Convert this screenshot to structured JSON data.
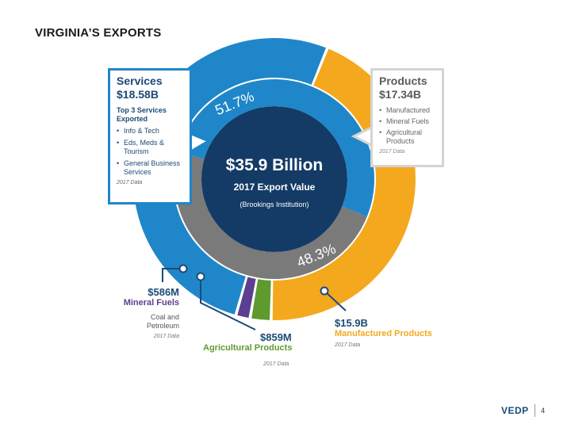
{
  "slide": {
    "title": "VIRGINIA’S EXPORTS",
    "page_number": "4",
    "logo": "VEDP"
  },
  "colors": {
    "services": "#1f87c9",
    "products": "#7a7a7a",
    "manufactured": "#f4a81d",
    "agricultural": "#5f9a2e",
    "mineral": "#5c3f8f",
    "center": "#133b66",
    "white": "#ffffff"
  },
  "center": {
    "value": "$35.9 Billion",
    "label": "2017 Export Value",
    "source": "(Brookings Institution)"
  },
  "services_box": {
    "title": "Services",
    "value": "$18.58B",
    "subtitle": "Top 3 Services Exported",
    "items": [
      "Info & Tech",
      "Eds, Meds & Tourism",
      "General Business Services"
    ],
    "note": "2017 Data"
  },
  "products_box": {
    "title": "Products",
    "value": "$17.34B",
    "items": [
      "Manufactured",
      "Mineral Fuels",
      "Agricultural Products"
    ],
    "note": "2017 Data"
  },
  "annotations": {
    "mineral": {
      "value": "$586M",
      "label": "Mineral Fuels",
      "desc": "Coal and Petroleum",
      "note": "2017 Data"
    },
    "agricultural": {
      "value": "$859M",
      "label": "Agricultural Products",
      "note": "2017 Data"
    },
    "manufactured": {
      "value": "$15.9B",
      "label": "Manufactured Products",
      "note": "2017 Data"
    }
  },
  "chart_data": [
    {
      "type": "pie",
      "labels": [
        "Services",
        "Products"
      ],
      "values": [
        51.7,
        48.3
      ],
      "unit": "%",
      "display_labels": [
        "51.7%",
        "48.3%"
      ]
    },
    {
      "type": "pie",
      "labels": [
        "Services",
        "Mineral Fuels",
        "Agricultural Products",
        "Manufactured Products"
      ],
      "values": [
        18.58,
        0.586,
        0.859,
        15.9
      ],
      "unit": "$B"
    }
  ]
}
